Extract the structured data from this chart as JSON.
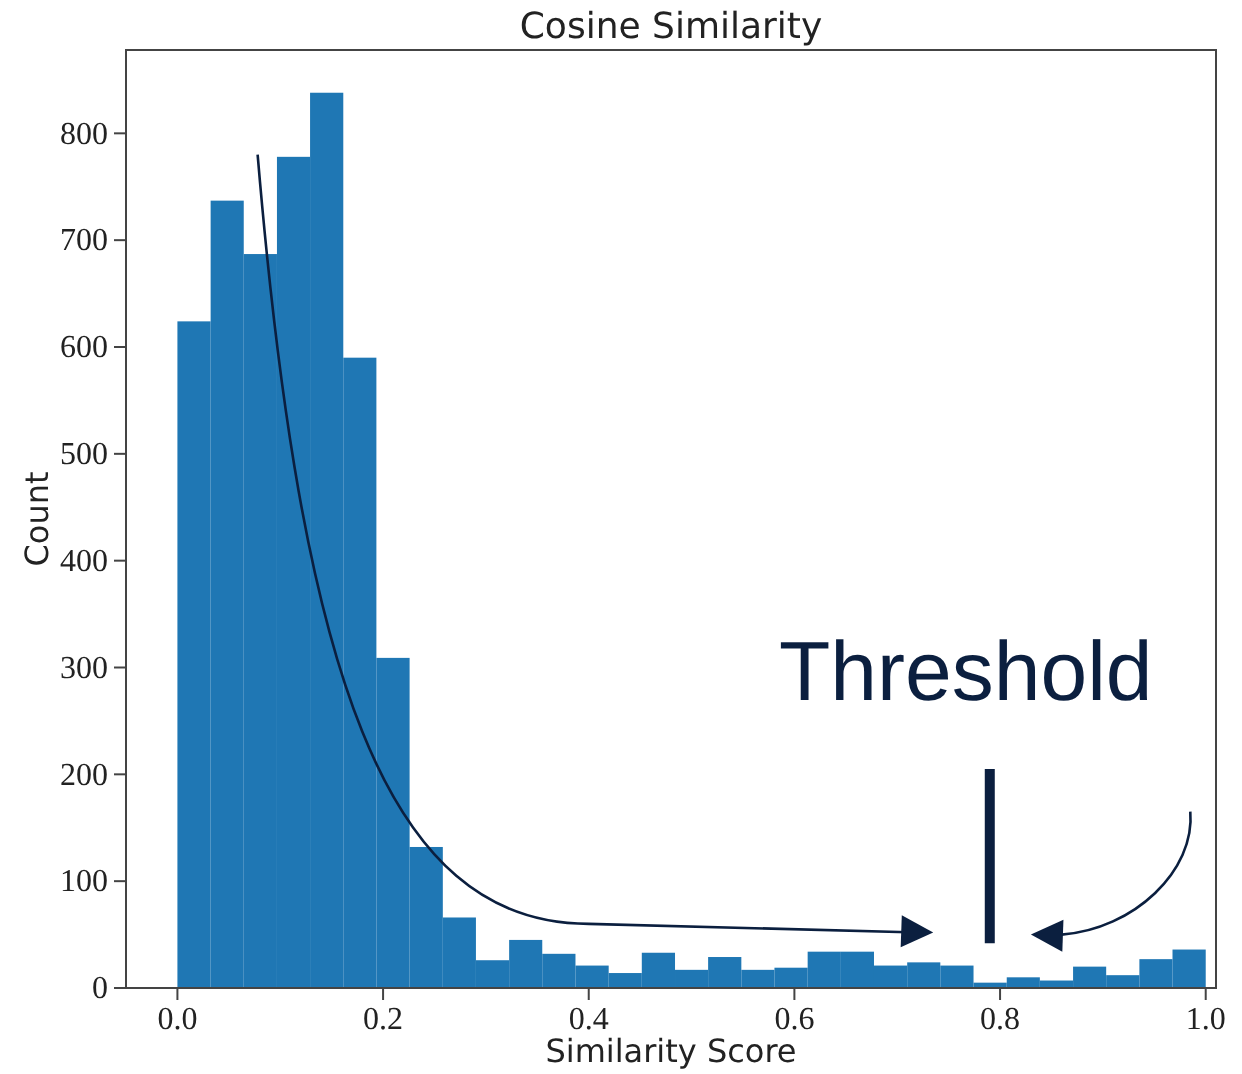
{
  "chart_data": {
    "type": "histogram",
    "title": "Cosine Similarity",
    "xlabel": "Similarity Score",
    "ylabel": "Count",
    "bins": [
      0,
      0.0323,
      0.0645,
      0.0968,
      0.129,
      0.1613,
      0.1935,
      0.2258,
      0.2581,
      0.2903,
      0.3226,
      0.3548,
      0.3871,
      0.4194,
      0.4516,
      0.4839,
      0.5161,
      0.5484,
      0.5806,
      0.6129,
      0.6452,
      0.6774,
      0.7097,
      0.7419,
      0.7742,
      0.8065,
      0.8387,
      0.871,
      0.9032,
      0.9355,
      0.9677,
      1
    ],
    "values": [
      624,
      737,
      687,
      778,
      838,
      590,
      309,
      132,
      66,
      26,
      45,
      32,
      21,
      14,
      33,
      17,
      29,
      17,
      19,
      34,
      34,
      21,
      24,
      21,
      5,
      10,
      7,
      20,
      12,
      27,
      36
    ],
    "color": "#1f77b4",
    "xlim": [
      -0.05,
      1.01
    ],
    "xticks": [
      {
        "value": 0,
        "label": "0.0"
      },
      0.2,
      0.4,
      0.6,
      0.8,
      {
        "value": 1,
        "label": "1.0"
      }
    ],
    "ylim": [
      0,
      878
    ],
    "yticks": [
      0,
      100,
      200,
      300,
      400,
      500,
      600,
      700,
      800
    ],
    "ref_lines": [
      {
        "axis": "x",
        "value": 0.79,
        "label": "Threshold",
        "color": "#0b1f3f"
      }
    ],
    "grid": false
  }
}
